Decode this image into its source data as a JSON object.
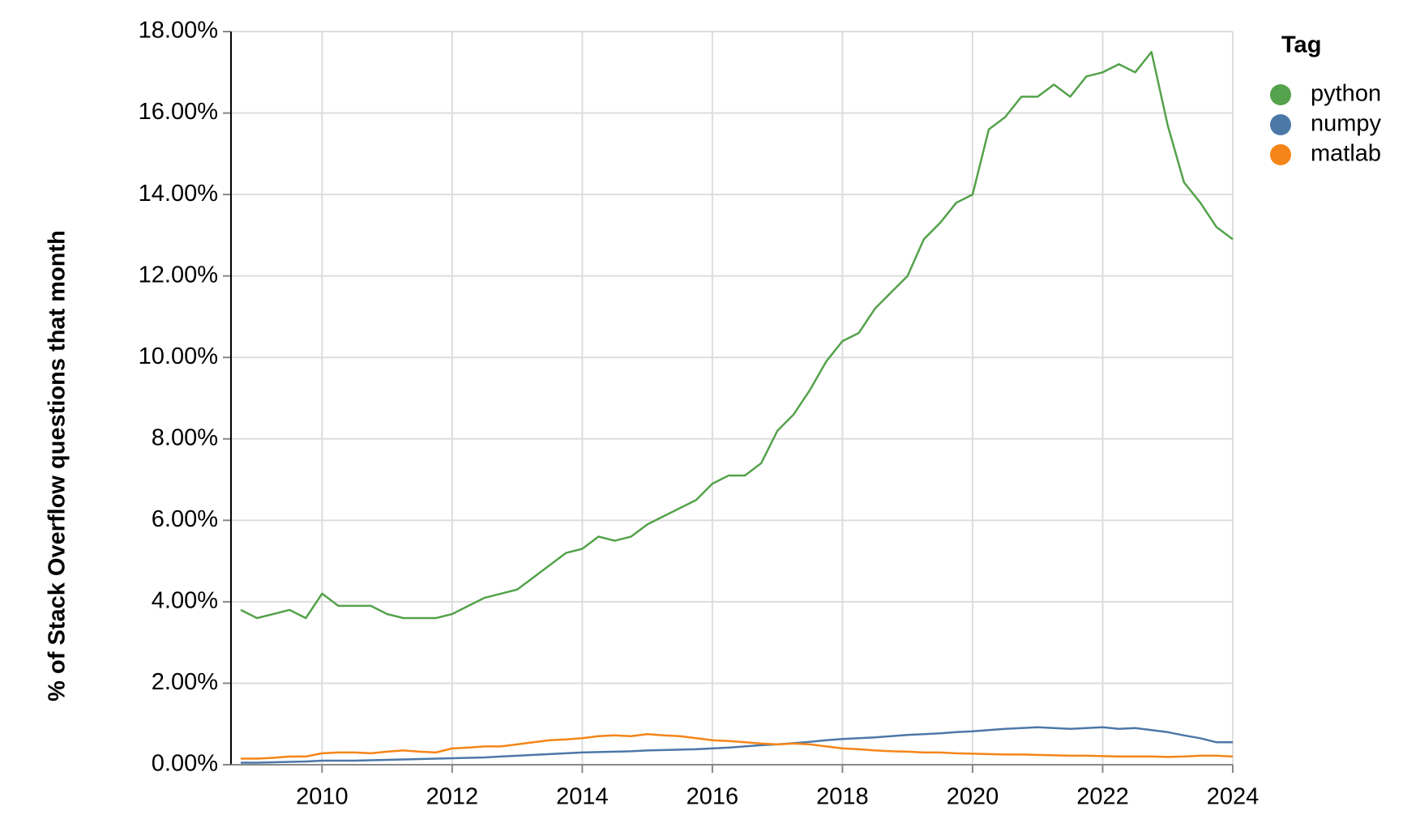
{
  "chart_data": {
    "type": "line",
    "ylabel": "% of Stack Overflow questions that month",
    "legend_title": "Tag",
    "legend": "right",
    "grid": true,
    "x": [
      2008.75,
      2009.0,
      2009.25,
      2009.5,
      2009.75,
      2010.0,
      2010.25,
      2010.5,
      2010.75,
      2011.0,
      2011.25,
      2011.5,
      2011.75,
      2012.0,
      2012.25,
      2012.5,
      2012.75,
      2013.0,
      2013.25,
      2013.5,
      2013.75,
      2014.0,
      2014.25,
      2014.5,
      2014.75,
      2015.0,
      2015.25,
      2015.5,
      2015.75,
      2016.0,
      2016.25,
      2016.5,
      2016.75,
      2017.0,
      2017.25,
      2017.5,
      2017.75,
      2018.0,
      2018.25,
      2018.5,
      2018.75,
      2019.0,
      2019.25,
      2019.5,
      2019.75,
      2020.0,
      2020.25,
      2020.5,
      2020.75,
      2021.0,
      2021.25,
      2021.5,
      2021.75,
      2022.0,
      2022.25,
      2022.5,
      2022.75,
      2023.0,
      2023.25,
      2023.5,
      2023.75,
      2024.0
    ],
    "series": [
      {
        "name": "python",
        "color": "#54a24b",
        "values": [
          3.8,
          3.6,
          3.7,
          3.8,
          3.6,
          4.2,
          3.9,
          3.9,
          3.9,
          3.7,
          3.6,
          3.6,
          3.6,
          3.7,
          3.9,
          4.1,
          4.2,
          4.3,
          4.6,
          4.9,
          5.2,
          5.3,
          5.6,
          5.5,
          5.6,
          5.9,
          6.1,
          6.3,
          6.5,
          6.9,
          7.1,
          7.1,
          7.4,
          8.2,
          8.6,
          9.2,
          9.9,
          10.4,
          10.6,
          11.2,
          11.6,
          12.0,
          12.9,
          13.3,
          13.8,
          14.0,
          15.6,
          15.9,
          16.4,
          16.4,
          16.7,
          16.4,
          16.9,
          17.0,
          17.2,
          17.0,
          17.5,
          15.7,
          14.3,
          13.8,
          13.2,
          12.9
        ]
      },
      {
        "name": "numpy",
        "color": "#4c78a8",
        "values": [
          0.05,
          0.05,
          0.06,
          0.07,
          0.08,
          0.1,
          0.1,
          0.1,
          0.11,
          0.12,
          0.13,
          0.14,
          0.15,
          0.16,
          0.17,
          0.18,
          0.2,
          0.22,
          0.24,
          0.26,
          0.28,
          0.3,
          0.31,
          0.32,
          0.33,
          0.35,
          0.36,
          0.37,
          0.38,
          0.4,
          0.42,
          0.45,
          0.48,
          0.5,
          0.53,
          0.56,
          0.6,
          0.63,
          0.65,
          0.67,
          0.7,
          0.73,
          0.75,
          0.77,
          0.8,
          0.82,
          0.85,
          0.88,
          0.9,
          0.92,
          0.9,
          0.88,
          0.9,
          0.92,
          0.88,
          0.9,
          0.85,
          0.8,
          0.72,
          0.65,
          0.55,
          0.55
        ]
      },
      {
        "name": "matlab",
        "color": "#f58518",
        "values": [
          0.15,
          0.15,
          0.17,
          0.2,
          0.2,
          0.28,
          0.3,
          0.3,
          0.28,
          0.32,
          0.35,
          0.32,
          0.3,
          0.4,
          0.42,
          0.45,
          0.45,
          0.5,
          0.55,
          0.6,
          0.62,
          0.65,
          0.7,
          0.72,
          0.7,
          0.75,
          0.72,
          0.7,
          0.65,
          0.6,
          0.58,
          0.55,
          0.52,
          0.5,
          0.52,
          0.5,
          0.45,
          0.4,
          0.38,
          0.35,
          0.33,
          0.32,
          0.3,
          0.3,
          0.28,
          0.27,
          0.26,
          0.25,
          0.25,
          0.24,
          0.23,
          0.22,
          0.22,
          0.21,
          0.2,
          0.2,
          0.2,
          0.19,
          0.2,
          0.22,
          0.22,
          0.2
        ]
      }
    ],
    "xlim": [
      2008.6,
      2024
    ],
    "xticks": [
      2010,
      2012,
      2014,
      2016,
      2018,
      2020,
      2022,
      2024
    ],
    "ylim": [
      0,
      18
    ],
    "yticks": [
      {
        "value": 0,
        "label": "0.00%"
      },
      {
        "value": 2,
        "label": "2.00%"
      },
      {
        "value": 4,
        "label": "4.00%"
      },
      {
        "value": 6,
        "label": "6.00%"
      },
      {
        "value": 8,
        "label": "8.00%"
      },
      {
        "value": 10,
        "label": "10.00%"
      },
      {
        "value": 12,
        "label": "12.00%"
      },
      {
        "value": 14,
        "label": "14.00%"
      },
      {
        "value": 16,
        "label": "16.00%"
      },
      {
        "value": 18,
        "label": "18.00%"
      }
    ]
  }
}
